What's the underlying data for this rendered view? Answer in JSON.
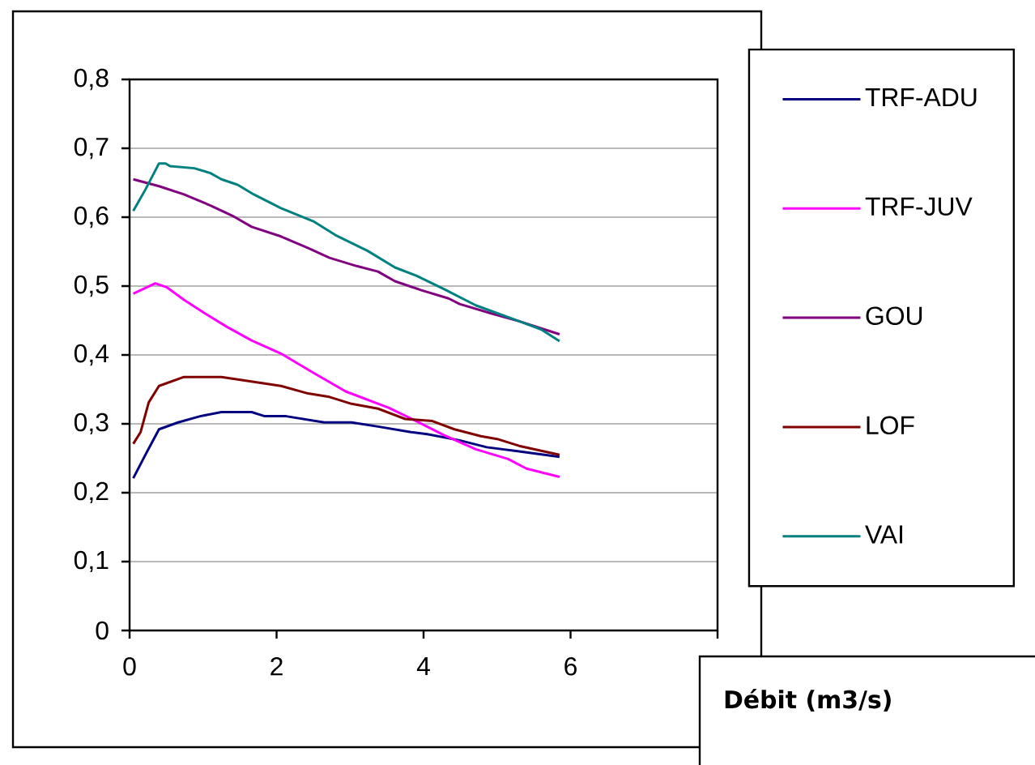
{
  "chart_data": {
    "type": "line",
    "xlabel": "Débit (m3/s)",
    "xlim": [
      0,
      8
    ],
    "xticks": [
      0,
      2,
      4,
      6,
      {
        "value": 8,
        "label": null
      }
    ],
    "ylim": [
      0,
      0.8
    ],
    "yticks": [
      {
        "value": 0,
        "label": "0"
      },
      {
        "value": 0.1,
        "label": "0,1"
      },
      {
        "value": 0.2,
        "label": "0,2"
      },
      {
        "value": 0.3,
        "label": "0,3"
      },
      {
        "value": 0.4,
        "label": "0,4"
      },
      {
        "value": 0.5,
        "label": "0,5"
      },
      {
        "value": 0.6,
        "label": "0,6"
      },
      {
        "value": 0.7,
        "label": "0,7"
      },
      {
        "value": 0.8,
        "label": "0,8"
      }
    ],
    "grid": "y",
    "legend": "right",
    "marker": "none",
    "line_style": "solid",
    "series": [
      {
        "name": "TRF-ADU",
        "color": "#000080",
        "x": [
          0.05,
          0.22,
          0.4,
          0.66,
          0.96,
          1.25,
          1.66,
          1.84,
          2.13,
          2.65,
          3.02,
          3.38,
          3.83,
          4.05,
          4.49,
          4.86,
          5.3,
          5.85
        ],
        "values": [
          0.221,
          0.256,
          0.292,
          0.302,
          0.311,
          0.317,
          0.317,
          0.311,
          0.311,
          0.302,
          0.302,
          0.296,
          0.288,
          0.285,
          0.276,
          0.266,
          0.26,
          0.252
        ]
      },
      {
        "name": "TRF-JUV",
        "color": "#ff00ff",
        "x": [
          0.05,
          0.35,
          0.51,
          0.74,
          1.03,
          1.32,
          1.66,
          2.06,
          2.5,
          2.94,
          3.53,
          3.9,
          4.27,
          4.71,
          5.15,
          5.4,
          5.85
        ],
        "values": [
          0.489,
          0.504,
          0.498,
          0.48,
          0.46,
          0.441,
          0.421,
          0.402,
          0.374,
          0.347,
          0.323,
          0.304,
          0.284,
          0.263,
          0.249,
          0.235,
          0.223
        ]
      },
      {
        "name": "GOU",
        "color": "#800080",
        "x": [
          0.05,
          0.4,
          0.74,
          1.1,
          1.4,
          1.66,
          2.06,
          2.43,
          2.72,
          3.09,
          3.38,
          3.61,
          3.97,
          4.34,
          4.49,
          4.93,
          5.3,
          5.85
        ],
        "values": [
          0.655,
          0.645,
          0.633,
          0.617,
          0.602,
          0.586,
          0.572,
          0.555,
          0.541,
          0.529,
          0.521,
          0.507,
          0.494,
          0.482,
          0.474,
          0.46,
          0.449,
          0.43
        ]
      },
      {
        "name": "LOF",
        "color": "#800000",
        "x": [
          0.05,
          0.15,
          0.26,
          0.4,
          0.74,
          1.25,
          1.62,
          2.06,
          2.43,
          2.72,
          3.02,
          3.38,
          3.75,
          4.12,
          4.42,
          4.78,
          5.0,
          5.3,
          5.85
        ],
        "values": [
          0.271,
          0.288,
          0.331,
          0.355,
          0.368,
          0.368,
          0.362,
          0.355,
          0.344,
          0.339,
          0.329,
          0.322,
          0.307,
          0.304,
          0.292,
          0.282,
          0.278,
          0.268,
          0.255
        ]
      },
      {
        "name": "VAI",
        "color": "#008080",
        "x": [
          0.05,
          0.22,
          0.4,
          0.49,
          0.55,
          0.88,
          1.1,
          1.25,
          1.47,
          1.69,
          2.06,
          2.5,
          2.8,
          3.24,
          3.61,
          3.9,
          4.27,
          4.71,
          5.3,
          5.6,
          5.85
        ],
        "values": [
          0.609,
          0.641,
          0.678,
          0.678,
          0.674,
          0.671,
          0.664,
          0.655,
          0.647,
          0.633,
          0.613,
          0.594,
          0.574,
          0.551,
          0.527,
          0.515,
          0.496,
          0.472,
          0.449,
          0.437,
          0.42
        ]
      }
    ]
  }
}
